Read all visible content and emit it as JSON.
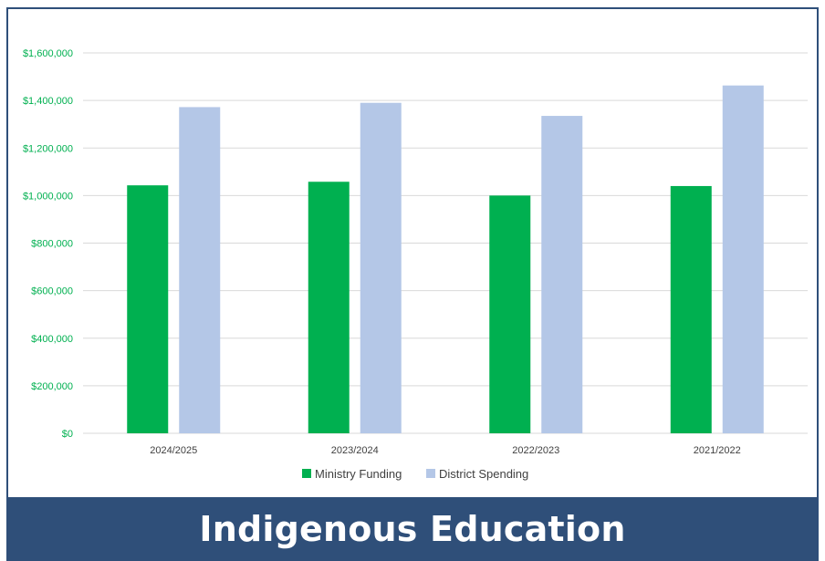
{
  "banner": {
    "title": "Indigenous Education"
  },
  "colors": {
    "frame_border": "#2f4f7a",
    "banner_bg": "#2f4f79",
    "ministry": "#00b050",
    "district": "#b4c7e7",
    "y_tick_text": "#00b050",
    "gridline": "#d9d9d9"
  },
  "chart_data": {
    "type": "bar",
    "title": "",
    "xlabel": "",
    "ylabel": "",
    "categories": [
      "2024/2025",
      "2023/2024",
      "2022/2023",
      "2021/2022"
    ],
    "series": [
      {
        "name": "Ministry Funding",
        "values": [
          1043000,
          1058000,
          1000000,
          1040000
        ]
      },
      {
        "name": "District Spending",
        "values": [
          1372000,
          1390000,
          1335000,
          1463000
        ]
      }
    ],
    "ylim": [
      0,
      1600000
    ],
    "y_ticks": [
      0,
      200000,
      400000,
      600000,
      800000,
      1000000,
      1200000,
      1400000,
      1600000
    ],
    "y_tick_labels": [
      "$0",
      "$200,000",
      "$400,000",
      "$600,000",
      "$800,000",
      "$1,000,000",
      "$1,200,000",
      "$1,400,000",
      "$1,600,000"
    ],
    "grid": true,
    "legend_position": "bottom"
  }
}
